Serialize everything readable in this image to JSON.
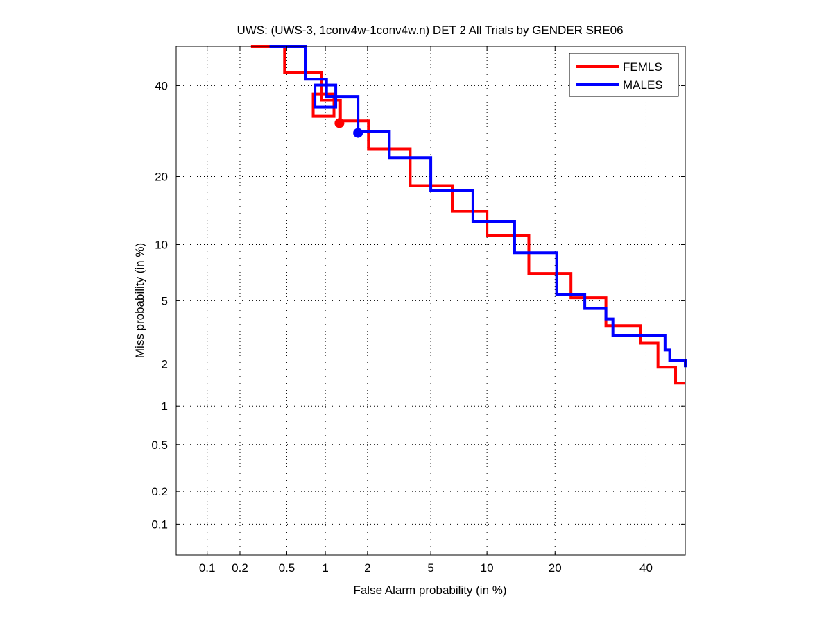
{
  "chart_data": {
    "type": "line",
    "scale": "normal-deviate (probit)",
    "title": "UWS: (UWS-3, 1conv4w-1conv4w.n) DET 2 All Trials by GENDER SRE06",
    "xlabel": "False Alarm probability (in %)",
    "ylabel": "Miss probability (in %)",
    "xlim": [
      0.05,
      50
    ],
    "ylim": [
      0.05,
      50
    ],
    "xticks": [
      0.1,
      0.2,
      0.5,
      1,
      2,
      5,
      10,
      20,
      40
    ],
    "xtick_labels": [
      "0.1",
      "0.2",
      "0.5",
      "1",
      "2",
      "5",
      "10",
      "20",
      "40"
    ],
    "yticks": [
      0.1,
      0.2,
      0.5,
      1,
      2,
      5,
      10,
      20,
      40
    ],
    "ytick_labels": [
      "0.1",
      "0.2",
      "0.5",
      "1",
      "2",
      "5",
      "10",
      "20",
      "40"
    ],
    "grid": true,
    "legend_position": "top-right",
    "series": [
      {
        "name": "FEMLS",
        "color": "#ff0000",
        "x": [
          0.25,
          0.48,
          0.93,
          1.29,
          2.03,
          3.77,
          6.6,
          10,
          15.6,
          23,
          30.4,
          38.6,
          43,
          47.5,
          50
        ],
        "y": [
          50,
          43.3,
          36.4,
          31.5,
          25.4,
          18.4,
          14.3,
          11.1,
          7.1,
          5.2,
          3.55,
          2.75,
          1.9,
          1.47,
          1.47
        ],
        "markers": [
          {
            "type": "square",
            "x": 0.97,
            "y": 35.2
          },
          {
            "type": "circle",
            "x": 1.27,
            "y": 31
          }
        ]
      },
      {
        "name": "MALES",
        "color": "#0000ff",
        "x": [
          0.36,
          0.71,
          1.02,
          1.72,
          2.79,
          5.0,
          8.5,
          13.5,
          20.3,
          25.8,
          30.4,
          32,
          38.6,
          44.8,
          46,
          47.6,
          50
        ],
        "y": [
          50,
          41.6,
          37.3,
          29.1,
          23.6,
          17.6,
          12.9,
          9.1,
          5.45,
          4.5,
          3.9,
          3.08,
          3.08,
          2.48,
          2.1,
          2.1,
          1.9
        ],
        "markers": [
          {
            "type": "square",
            "x": 1.0,
            "y": 37.4
          },
          {
            "type": "circle",
            "x": 1.72,
            "y": 28.8
          }
        ]
      }
    ]
  }
}
